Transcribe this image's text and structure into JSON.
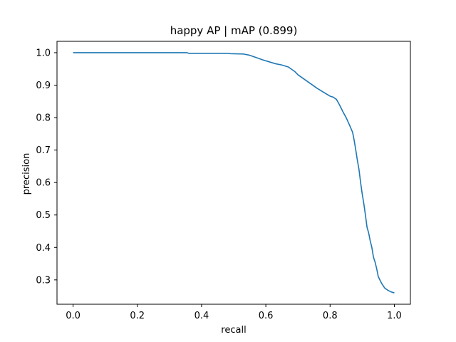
{
  "chart_data": {
    "type": "line",
    "title": "happy AP | mAP (0.899)",
    "xlabel": "recall",
    "ylabel": "precision",
    "xlim": [
      -0.05,
      1.05
    ],
    "ylim": [
      0.225,
      1.035
    ],
    "grid": false,
    "x_ticks": [
      "0.0",
      "0.2",
      "0.4",
      "0.6",
      "0.8",
      "1.0"
    ],
    "y_ticks": [
      "0.3",
      "0.4",
      "0.5",
      "0.6",
      "0.7",
      "0.8",
      "0.9",
      "1.0"
    ],
    "colors": {
      "line": "#1f77b4",
      "axes": "#000000"
    },
    "series": [
      {
        "x": [
          0.0,
          0.1,
          0.2,
          0.3,
          0.355,
          0.36,
          0.42,
          0.48,
          0.49,
          0.53,
          0.55,
          0.57,
          0.59,
          0.61,
          0.63,
          0.65,
          0.67,
          0.69,
          0.7,
          0.72,
          0.74,
          0.76,
          0.78,
          0.8,
          0.81,
          0.82,
          0.83,
          0.84,
          0.85,
          0.86,
          0.87,
          0.875,
          0.88,
          0.885,
          0.89,
          0.895,
          0.9,
          0.905,
          0.91,
          0.915,
          0.92,
          0.925,
          0.93,
          0.935,
          0.94,
          0.945,
          0.95,
          0.96,
          0.97,
          0.98,
          0.99,
          1.0
        ],
        "y": [
          1.0,
          1.0,
          1.0,
          1.0,
          1.0,
          0.998,
          0.998,
          0.998,
          0.997,
          0.996,
          0.992,
          0.985,
          0.978,
          0.972,
          0.966,
          0.962,
          0.956,
          0.942,
          0.932,
          0.918,
          0.904,
          0.89,
          0.878,
          0.866,
          0.863,
          0.856,
          0.838,
          0.818,
          0.8,
          0.778,
          0.755,
          0.73,
          0.7,
          0.668,
          0.64,
          0.6,
          0.565,
          0.535,
          0.5,
          0.462,
          0.445,
          0.42,
          0.4,
          0.37,
          0.355,
          0.335,
          0.31,
          0.29,
          0.275,
          0.268,
          0.263,
          0.26
        ]
      }
    ]
  }
}
